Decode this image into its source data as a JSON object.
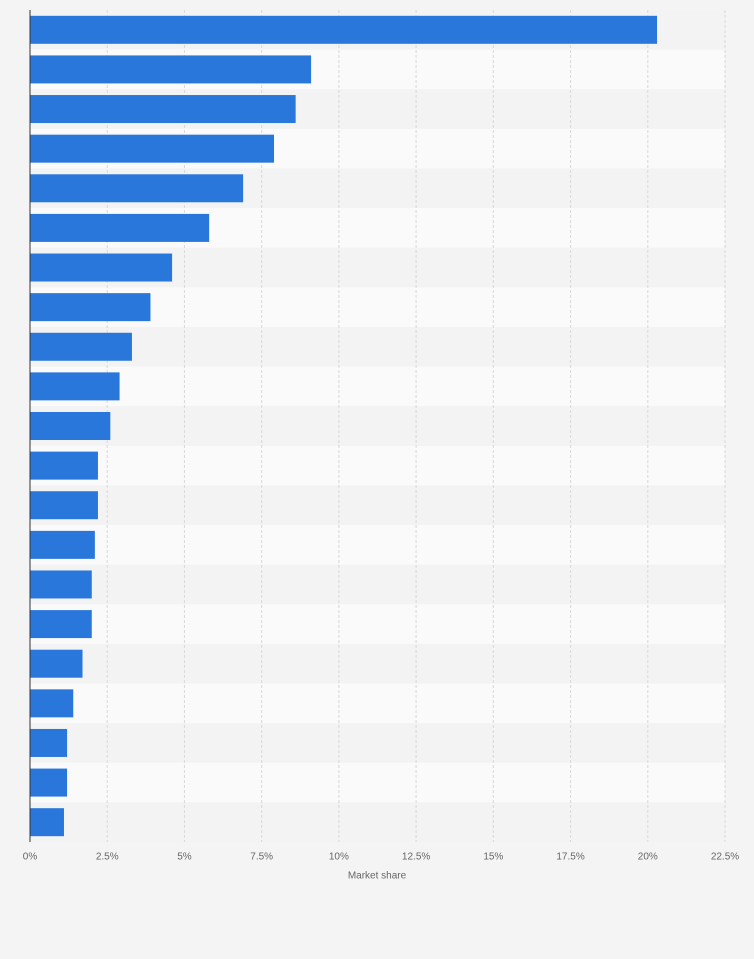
{
  "chart_data": {
    "type": "bar",
    "orientation": "horizontal",
    "x_label": "Market share",
    "categories": [
      null,
      null,
      null,
      null,
      null,
      null,
      null,
      null,
      null,
      null,
      null,
      null,
      null,
      null,
      null,
      null,
      null,
      null,
      null,
      null,
      null
    ],
    "values": [
      20.3,
      9.1,
      8.6,
      7.9,
      6.9,
      5.8,
      4.6,
      3.9,
      3.3,
      2.9,
      2.6,
      2.2,
      2.2,
      2.1,
      2.0,
      2.0,
      1.7,
      1.4,
      1.2,
      1.2,
      1.1
    ],
    "color": "#2a77db",
    "xlim": [
      0,
      22.5
    ],
    "xticks": [
      {
        "value": 0,
        "label": "0%"
      },
      {
        "value": 2.5,
        "label": "2.5%"
      },
      {
        "value": 5,
        "label": "5%"
      },
      {
        "value": 7.5,
        "label": "7.5%"
      },
      {
        "value": 10,
        "label": "10%"
      },
      {
        "value": 12.5,
        "label": "12.5%"
      },
      {
        "value": 15,
        "label": "15%"
      },
      {
        "value": 17.5,
        "label": "17.5%"
      },
      {
        "value": 20,
        "label": "20%"
      },
      {
        "value": 22.5,
        "label": "22.5%"
      }
    ],
    "grid": true
  }
}
